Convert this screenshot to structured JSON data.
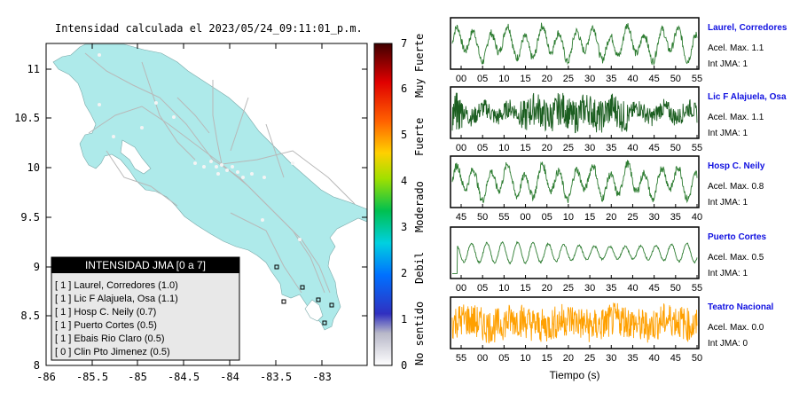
{
  "map": {
    "title": "Intensidad calculada el 2023/05/24_09:11:01_p.m.",
    "xlim": [
      -86,
      -82.5
    ],
    "ylim": [
      8,
      11.3
    ],
    "x_ticks": [
      "-86",
      "-85.5",
      "-85",
      "-84.5",
      "-84",
      "-83.5",
      "-83"
    ],
    "y_ticks": [
      "8",
      "8.5",
      "9",
      "9.5",
      "10",
      "10.5",
      "11"
    ],
    "land_color": "#aeeaea",
    "road_color": "#b8b8b8",
    "legend": {
      "title": "INTENSIDAD JMA [0 a 7]",
      "entries": [
        "[ 1 ]  Laurel, Corredores (1.0)",
        "[ 1 ]  Lic F Alajuela, Osa (1.1)",
        "[ 1 ]  Hosp C. Neily (0.7)",
        "[ 1 ]  Puerto Cortes (0.5)",
        "[ 1 ]  Ebais Rio Claro (0.5)",
        "[ 0 ]  Clin Pto Jimenez (0.5)"
      ]
    }
  },
  "colorbar": {
    "ticks": [
      "0",
      "1",
      "2",
      "3",
      "4",
      "5",
      "6",
      "7"
    ],
    "labels": [
      "No sentido",
      "Debil",
      "Moderado",
      "Fuerte",
      "Muy Fuerte"
    ],
    "range": [
      0,
      7
    ]
  },
  "chart_data": {
    "type": "line",
    "xlabel": "Tiempo (s)",
    "panels": [
      {
        "station": "Laurel, Corredores",
        "acel": "Acel. Max. 1.1",
        "int": "Int JMA: 1",
        "ticks": [
          "00",
          "05",
          "10",
          "15",
          "20",
          "25",
          "30",
          "35",
          "40",
          "45",
          "50",
          "55"
        ],
        "color": "#2e7d32",
        "style": "lowfreq"
      },
      {
        "station": "Lic F Alajuela, Osa",
        "acel": "Acel. Max. 1.1",
        "int": "Int JMA: 1",
        "ticks": [
          "00",
          "05",
          "10",
          "15",
          "20",
          "25",
          "30",
          "35",
          "40",
          "45",
          "50",
          "55"
        ],
        "color": "#1b5e20",
        "style": "noisy"
      },
      {
        "station": "Hosp C. Neily",
        "acel": "Acel. Max. 0.8",
        "int": "Int JMA: 1",
        "ticks": [
          "45",
          "50",
          "55",
          "00",
          "05",
          "10",
          "15",
          "20",
          "25",
          "30",
          "35",
          "40"
        ],
        "color": "#2e7d32",
        "style": "lowfreq"
      },
      {
        "station": "Puerto Cortes",
        "acel": "Acel. Max. 0.5",
        "int": "Int JMA: 1",
        "ticks": [
          "00",
          "05",
          "10",
          "15",
          "20",
          "25",
          "30",
          "35",
          "40",
          "45",
          "50",
          "55"
        ],
        "color": "#2e7d32",
        "style": "smooth"
      },
      {
        "station": "Teatro Nacional",
        "acel": "Acel. Max. 0.0",
        "int": "Int JMA: 0",
        "ticks": [
          "55",
          "00",
          "05",
          "10",
          "15",
          "20",
          "25",
          "30",
          "35",
          "40",
          "45",
          "50"
        ],
        "color": "#ffa000",
        "style": "noise"
      }
    ]
  }
}
